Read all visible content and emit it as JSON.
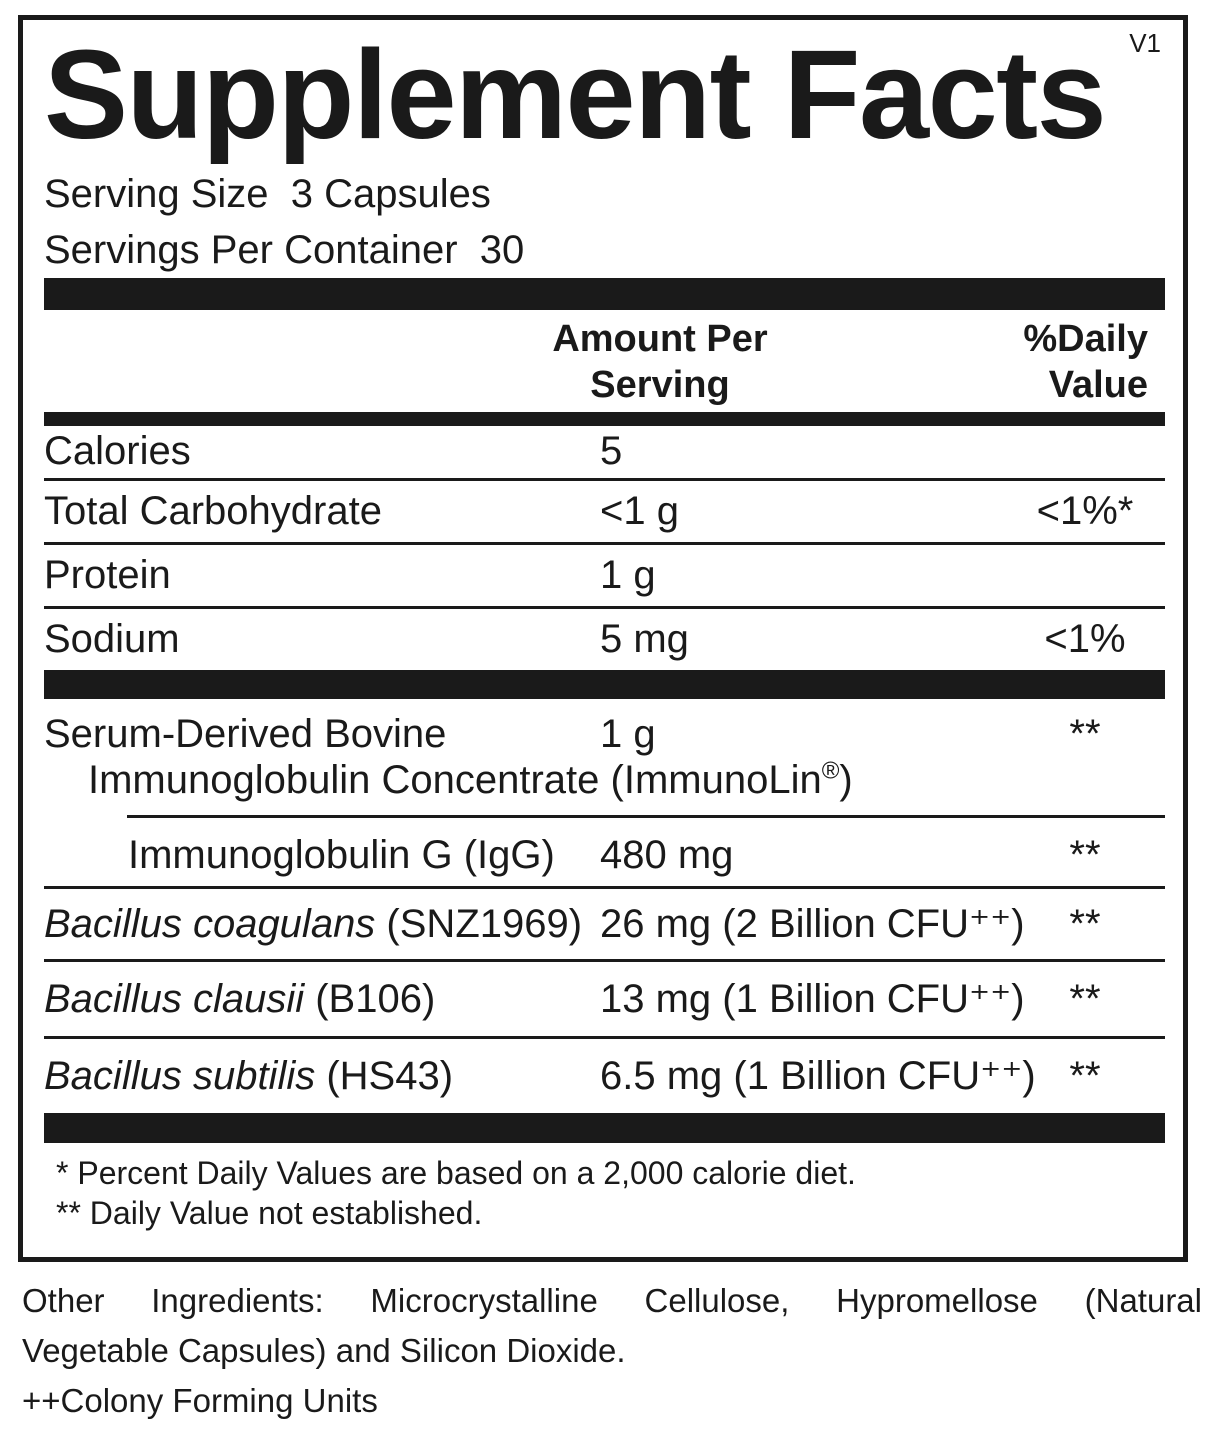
{
  "version": "V1",
  "title": "Supplement Facts",
  "serving": {
    "size_line": "Serving Size  3 Capsules",
    "per_container_line": "Servings Per Container  30"
  },
  "header": {
    "amount_line1": "Amount Per",
    "amount_line2": "Serving",
    "dv_line1": "%Daily",
    "dv_line2": "Value"
  },
  "nutrient_rows": [
    {
      "name": "Calories",
      "amount": "5",
      "dv": ""
    },
    {
      "name": "Total Carbohydrate",
      "amount": "<1 g",
      "dv": "<1%*"
    },
    {
      "name": "Protein",
      "amount": "1 g",
      "dv": ""
    },
    {
      "name": "Sodium",
      "amount": "5 mg",
      "dv": "<1%"
    }
  ],
  "serum_row": {
    "name_line1": "Serum-Derived Bovine",
    "amount": "1 g",
    "dv": "**",
    "name_line2_pre": "Immunoglobulin Concentrate (ImmunoLin",
    "name_line2_sup": "®",
    "name_line2_post": ")"
  },
  "ig_row": {
    "name": "Immunoglobulin G (IgG)",
    "amount": "480 mg",
    "dv": "**"
  },
  "probiotic_rows": [
    {
      "name_italic": "Bacillus coagulans",
      "name_plain": " (SNZ1969)",
      "amount": "26 mg (2 Billion CFU⁺⁺)",
      "dv": "**"
    },
    {
      "name_italic": "Bacillus clausii",
      "name_plain": " (B106)",
      "amount": "13 mg (1 Billion CFU⁺⁺)",
      "dv": "**"
    },
    {
      "name_italic": "Bacillus subtilis",
      "name_plain": " (HS43)",
      "amount": "6.5 mg (1 Billion CFU⁺⁺)",
      "dv": "**"
    }
  ],
  "footnotes": {
    "daily_value": "* Percent Daily Values are based on a 2,000 calorie diet.",
    "not_established": "** Daily Value not established."
  },
  "other_ingredients": {
    "line1": "Other Ingredients: Microcrystalline Cellulose, Hypromellose (Natural",
    "line2": "Vegetable Capsules) and Silicon Dioxide.",
    "cfu_note": "++Colony Forming Units"
  },
  "colors": {
    "ink": "#1a1a1a",
    "background": "#ffffff"
  }
}
